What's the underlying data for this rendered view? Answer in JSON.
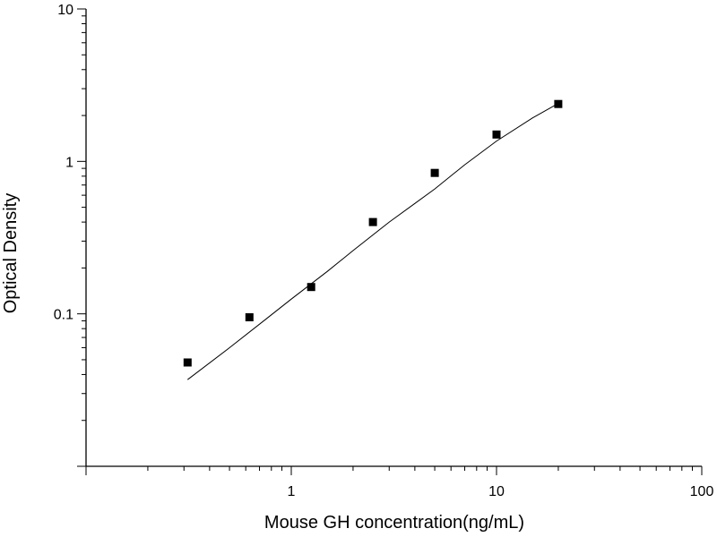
{
  "chart_data": {
    "type": "scatter",
    "title": "",
    "xlabel": "Mouse GH concentration(ng/mL)",
    "ylabel": "Optical Density",
    "x_scale": "log",
    "y_scale": "log",
    "xlim": [
      0.1,
      100
    ],
    "ylim": [
      0.01,
      10
    ],
    "x_tick_labels": [
      "1",
      "10",
      "100"
    ],
    "y_tick_labels": [
      "0.1",
      "1",
      "10"
    ],
    "grid": false,
    "legend": "none",
    "series": [
      {
        "kind": "points",
        "marker": "square",
        "color": "#000000",
        "x": [
          0.3125,
          0.625,
          1.25,
          2.5,
          5,
          10,
          20
        ],
        "y": [
          0.048,
          0.095,
          0.15,
          0.4,
          0.84,
          1.5,
          2.38
        ]
      },
      {
        "kind": "fit-curve",
        "color": "#000000",
        "x": [
          0.3125,
          0.5,
          0.75,
          1.0,
          1.5,
          2.0,
          3.0,
          4.0,
          5.0,
          7.0,
          10,
          15,
          20
        ],
        "y": [
          0.037,
          0.06,
          0.092,
          0.125,
          0.19,
          0.26,
          0.4,
          0.53,
          0.66,
          0.95,
          1.36,
          1.93,
          2.4
        ]
      }
    ]
  }
}
